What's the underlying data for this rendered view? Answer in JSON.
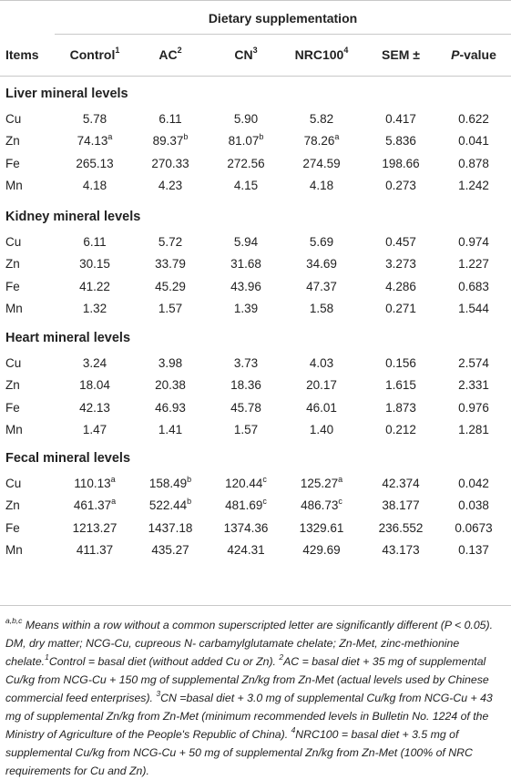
{
  "header": {
    "group_label": "Dietary supplementation",
    "columns": [
      {
        "label": "Items",
        "sup": ""
      },
      {
        "label": "Control",
        "sup": "1"
      },
      {
        "label": "AC",
        "sup": "2"
      },
      {
        "label": "CN",
        "sup": "3"
      },
      {
        "label": "NRC100",
        "sup": "4"
      },
      {
        "label": "SEM ±",
        "sup": ""
      },
      {
        "label": "P",
        "suffix": "-value",
        "sup": ""
      }
    ]
  },
  "sections": [
    {
      "title": "Liver mineral levels",
      "rows": [
        {
          "item": "Cu",
          "values": [
            [
              "5.78",
              ""
            ],
            [
              "6.11",
              ""
            ],
            [
              "5.90",
              ""
            ],
            [
              "5.82",
              ""
            ],
            [
              "0.417",
              ""
            ],
            [
              "0.622",
              ""
            ]
          ]
        },
        {
          "item": "Zn",
          "values": [
            [
              "74.13",
              "a"
            ],
            [
              "89.37",
              "b"
            ],
            [
              "81.07",
              "b"
            ],
            [
              "78.26",
              "a"
            ],
            [
              "5.836",
              ""
            ],
            [
              "0.041",
              ""
            ]
          ]
        },
        {
          "item": "Fe",
          "values": [
            [
              "265.13",
              ""
            ],
            [
              "270.33",
              ""
            ],
            [
              "272.56",
              ""
            ],
            [
              "274.59",
              ""
            ],
            [
              "198.66",
              ""
            ],
            [
              "0.878",
              ""
            ]
          ]
        },
        {
          "item": "Mn",
          "values": [
            [
              "4.18",
              ""
            ],
            [
              "4.23",
              ""
            ],
            [
              "4.15",
              ""
            ],
            [
              "4.18",
              ""
            ],
            [
              "0.273",
              ""
            ],
            [
              "1.242",
              ""
            ]
          ]
        }
      ]
    },
    {
      "title": "Kidney mineral levels",
      "rows": [
        {
          "item": "Cu",
          "values": [
            [
              "6.11",
              ""
            ],
            [
              "5.72",
              ""
            ],
            [
              "5.94",
              ""
            ],
            [
              "5.69",
              ""
            ],
            [
              "0.457",
              ""
            ],
            [
              "0.974",
              ""
            ]
          ]
        },
        {
          "item": "Zn",
          "values": [
            [
              "30.15",
              ""
            ],
            [
              "33.79",
              ""
            ],
            [
              "31.68",
              ""
            ],
            [
              "34.69",
              ""
            ],
            [
              "3.273",
              ""
            ],
            [
              "1.227",
              ""
            ]
          ]
        },
        {
          "item": "Fe",
          "values": [
            [
              "41.22",
              ""
            ],
            [
              "45.29",
              ""
            ],
            [
              "43.96",
              ""
            ],
            [
              "47.37",
              ""
            ],
            [
              "4.286",
              ""
            ],
            [
              "0.683",
              ""
            ]
          ]
        },
        {
          "item": "Mn",
          "values": [
            [
              "1.32",
              ""
            ],
            [
              "1.57",
              ""
            ],
            [
              "1.39",
              ""
            ],
            [
              "1.58",
              ""
            ],
            [
              "0.271",
              ""
            ],
            [
              "1.544",
              ""
            ]
          ]
        }
      ]
    },
    {
      "title": "Heart mineral levels",
      "rows": [
        {
          "item": "Cu",
          "values": [
            [
              "3.24",
              ""
            ],
            [
              "3.98",
              ""
            ],
            [
              "3.73",
              ""
            ],
            [
              "4.03",
              ""
            ],
            [
              "0.156",
              ""
            ],
            [
              "2.574",
              ""
            ]
          ]
        },
        {
          "item": "Zn",
          "values": [
            [
              "18.04",
              ""
            ],
            [
              "20.38",
              ""
            ],
            [
              "18.36",
              ""
            ],
            [
              "20.17",
              ""
            ],
            [
              "1.615",
              ""
            ],
            [
              "2.331",
              ""
            ]
          ]
        },
        {
          "item": "Fe",
          "values": [
            [
              "42.13",
              ""
            ],
            [
              "46.93",
              ""
            ],
            [
              "45.78",
              ""
            ],
            [
              "46.01",
              ""
            ],
            [
              "1.873",
              ""
            ],
            [
              "0.976",
              ""
            ]
          ]
        },
        {
          "item": "Mn",
          "values": [
            [
              "1.47",
              ""
            ],
            [
              "1.41",
              ""
            ],
            [
              "1.57",
              ""
            ],
            [
              "1.40",
              ""
            ],
            [
              "0.212",
              ""
            ],
            [
              "1.281",
              ""
            ]
          ]
        }
      ]
    },
    {
      "title": "Fecal mineral levels",
      "rows": [
        {
          "item": "Cu",
          "values": [
            [
              "110.13",
              "a"
            ],
            [
              "158.49",
              "b"
            ],
            [
              "120.44",
              "c"
            ],
            [
              "125.27",
              "a"
            ],
            [
              "42.374",
              ""
            ],
            [
              "0.042",
              ""
            ]
          ]
        },
        {
          "item": "Zn",
          "values": [
            [
              "461.37",
              "a"
            ],
            [
              "522.44",
              "b"
            ],
            [
              "481.69",
              "c"
            ],
            [
              "486.73",
              "c"
            ],
            [
              "38.177",
              ""
            ],
            [
              "0.038",
              ""
            ]
          ]
        },
        {
          "item": "Fe",
          "values": [
            [
              "1213.27",
              ""
            ],
            [
              "1437.18",
              ""
            ],
            [
              "1374.36",
              ""
            ],
            [
              "1329.61",
              ""
            ],
            [
              "236.552",
              ""
            ],
            [
              "0.0673",
              ""
            ]
          ]
        },
        {
          "item": "Mn",
          "values": [
            [
              "411.37",
              ""
            ],
            [
              "435.27",
              ""
            ],
            [
              "424.31",
              ""
            ],
            [
              "429.69",
              ""
            ],
            [
              "43.173",
              ""
            ],
            [
              "0.137",
              ""
            ]
          ]
        }
      ]
    }
  ],
  "footnote": {
    "sig_sup": "a,b,c",
    "sig_text": " Means within a row without a common superscripted letter are significantly different (P < 0.05). DM, dry matter; NCG-Cu, cupreous N- carbamylglutamate chelate; Zn-Met, zinc-methionine chelate.",
    "notes": [
      {
        "sup": "1",
        "text": "Control = basal diet (without added Cu or Zn)."
      },
      {
        "sup": "2",
        "text": "AC = basal diet + 35 mg of supplemental Cu/kg from NCG-Cu + 150 mg of supplemental Zn/kg from Zn-Met (actual levels used by Chinese commercial feed enterprises)."
      },
      {
        "sup": "3",
        "text": "CN =basal diet + 3.0 mg of supplemental Cu/kg from NCG-Cu + 43 mg of supplemental Zn/kg from Zn-Met (minimum recommended levels in Bulletin No. 1224 of the Ministry of Agriculture of the People's Republic of China)."
      },
      {
        "sup": "4",
        "text": "NRC100 = basal diet + 3.5 mg of supplemental Cu/kg from NCG-Cu + 50 mg of supplemental Zn/kg from Zn-Met (100% of NRC requirements for Cu and Zn)."
      }
    ]
  }
}
